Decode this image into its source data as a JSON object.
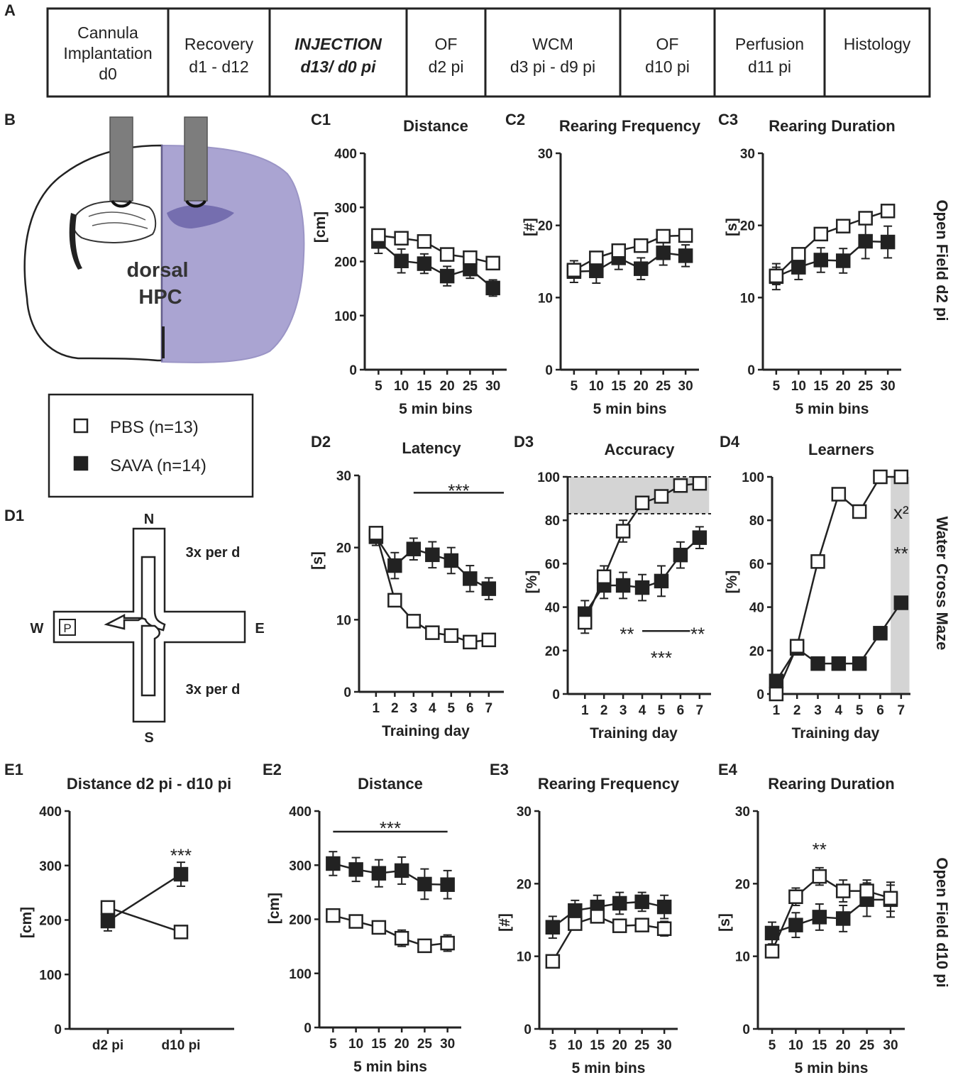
{
  "panel_labels": {
    "A": "A",
    "B": "B",
    "C1": "C1",
    "C2": "C2",
    "C3": "C3",
    "D1": "D1",
    "D2": "D2",
    "D3": "D3",
    "D4": "D4",
    "E1": "E1",
    "E2": "E2",
    "E3": "E3",
    "E4": "E4"
  },
  "timeline": [
    {
      "lines": [
        "Cannula",
        "Implantation",
        "d0"
      ],
      "italic_bold": false
    },
    {
      "lines": [
        "Recovery",
        "d1 - d12"
      ],
      "italic_bold": false
    },
    {
      "lines": [
        "INJECTION",
        "d13/ d0 pi"
      ],
      "italic_bold": true
    },
    {
      "lines": [
        "OF",
        "d2 pi"
      ],
      "italic_bold": false
    },
    {
      "lines": [
        "WCM",
        "d3 pi - d9 pi"
      ],
      "italic_bold": false
    },
    {
      "lines": [
        "OF",
        "d10 pi"
      ],
      "italic_bold": false
    },
    {
      "lines": [
        "Perfusion",
        "d11 pi"
      ],
      "italic_bold": false
    },
    {
      "lines": [
        "Histology"
      ],
      "italic_bold": false
    }
  ],
  "brain": {
    "label_line1": "dorsal",
    "label_line2": "HPC"
  },
  "legend": {
    "pbs": "PBS (n=13)",
    "sava": "SAVA (n=14)"
  },
  "maze": {
    "north": "N",
    "south": "S",
    "west": "W",
    "east": "E",
    "platform": "P",
    "trials_top": "3x per d",
    "trials_bottom": "3x per d"
  },
  "side_labels": {
    "of_d2": "Open Field d2 pi",
    "wcm": "Water Cross Maze",
    "of_d10": "Open Field d10 pi"
  },
  "colors": {
    "pbs_fill": "#ffffff",
    "sava_fill": "#222222",
    "line": "#222222",
    "shade": "#d4d4d4",
    "brain_stain": "#8e86c3"
  },
  "chart_data": [
    {
      "id": "C1",
      "type": "line",
      "title": "Distance",
      "xlabel": "5 min bins",
      "ylabel": "[cm]",
      "x": [
        5,
        10,
        15,
        20,
        25,
        30
      ],
      "ylim": [
        0,
        400
      ],
      "yticks": [
        0,
        100,
        200,
        300,
        400
      ],
      "series": [
        {
          "name": "PBS",
          "values": [
            248,
            243,
            237,
            213,
            207,
            197
          ],
          "err": [
            10,
            10,
            10,
            10,
            10,
            10
          ]
        },
        {
          "name": "SAVA",
          "values": [
            237,
            201,
            196,
            173,
            186,
            151
          ],
          "err": [
            22,
            22,
            18,
            18,
            17,
            15
          ]
        }
      ],
      "annotations": []
    },
    {
      "id": "C2",
      "type": "line",
      "title": "Rearing Frequency",
      "xlabel": "5 min bins",
      "ylabel": "[#]",
      "x": [
        5,
        10,
        15,
        20,
        25,
        30
      ],
      "ylim": [
        0,
        30
      ],
      "yticks": [
        0,
        10,
        20,
        30
      ],
      "series": [
        {
          "name": "PBS",
          "values": [
            13.8,
            15.5,
            16.5,
            17.2,
            18.5,
            18.6
          ],
          "err": [
            0.8,
            0.8,
            0.8,
            0.8,
            0.8,
            0.8
          ]
        },
        {
          "name": "SAVA",
          "values": [
            13.6,
            13.7,
            15.5,
            14.0,
            16.2,
            15.8
          ],
          "err": [
            1.5,
            1.7,
            1.6,
            1.5,
            1.7,
            1.5
          ]
        }
      ],
      "annotations": []
    },
    {
      "id": "C3",
      "type": "line",
      "title": "Rearing Duration",
      "xlabel": "5 min bins",
      "ylabel": "[s]",
      "x": [
        5,
        10,
        15,
        20,
        25,
        30
      ],
      "ylim": [
        0,
        30
      ],
      "yticks": [
        0,
        10,
        20,
        30
      ],
      "series": [
        {
          "name": "PBS",
          "values": [
            13.0,
            16.0,
            18.8,
            19.9,
            21.0,
            22.0
          ],
          "err": [
            1.2,
            0.8,
            0.8,
            0.7,
            0.8,
            0.8
          ]
        },
        {
          "name": "SAVA",
          "values": [
            12.9,
            14.2,
            15.2,
            15.1,
            17.8,
            17.7
          ],
          "err": [
            1.8,
            1.7,
            1.7,
            1.7,
            2.4,
            2.2
          ]
        }
      ],
      "annotations": []
    },
    {
      "id": "D2",
      "type": "line",
      "title": "Latency",
      "xlabel": "Training day",
      "ylabel": "[s]",
      "x": [
        1,
        2,
        3,
        4,
        5,
        6,
        7
      ],
      "ylim": [
        0,
        30
      ],
      "yticks": [
        0,
        10,
        20,
        30
      ],
      "series": [
        {
          "name": "PBS",
          "values": [
            22.0,
            12.7,
            9.8,
            8.2,
            7.8,
            6.9,
            7.2
          ],
          "err": [
            0.5,
            0.9,
            0.5,
            0.5,
            0.5,
            0.5,
            0.5
          ]
        },
        {
          "name": "SAVA",
          "values": [
            21.5,
            17.5,
            19.8,
            19.0,
            18.2,
            15.7,
            14.3
          ],
          "err": [
            1.2,
            1.8,
            1.5,
            1.8,
            1.8,
            1.8,
            1.5
          ]
        }
      ],
      "annotations": [
        {
          "text": "***",
          "type": "sigline",
          "x1": 3,
          "x2": 7.8,
          "y": 27.6,
          "ty": 28.4
        }
      ]
    },
    {
      "id": "D3",
      "type": "line",
      "title": "Accuracy",
      "xlabel": "Training day",
      "ylabel": "[%]",
      "x": [
        1,
        2,
        3,
        4,
        5,
        6,
        7
      ],
      "ylim": [
        0,
        100
      ],
      "yticks": [
        0,
        20,
        40,
        60,
        80,
        100
      ],
      "shade": {
        "y1": 83,
        "y2": 100,
        "from": 0.2,
        "to": 7.5
      },
      "series": [
        {
          "name": "PBS",
          "values": [
            33,
            54,
            75,
            88,
            91,
            96,
            97
          ],
          "err": [
            5,
            5,
            5,
            2,
            2,
            2,
            2
          ]
        },
        {
          "name": "SAVA",
          "values": [
            37,
            50,
            50,
            49,
            52,
            64,
            72
          ],
          "err": [
            6,
            6,
            6,
            6,
            7,
            6,
            5
          ]
        }
      ],
      "annotations": [
        {
          "text": "**",
          "type": "text",
          "x": 3.2,
          "y": 28
        },
        {
          "text": "",
          "type": "line",
          "x1": 4,
          "x2": 6.5,
          "y": 29
        },
        {
          "text": "**",
          "type": "text",
          "x": 6.9,
          "y": 28
        },
        {
          "text": "***",
          "type": "text",
          "x": 5,
          "y": 17
        }
      ]
    },
    {
      "id": "D4",
      "type": "line",
      "title": "Learners",
      "xlabel": "Training day",
      "ylabel": "[%]",
      "x": [
        1,
        2,
        3,
        4,
        5,
        6,
        7
      ],
      "ylim": [
        0,
        100
      ],
      "yticks": [
        0,
        20,
        40,
        60,
        80,
        100
      ],
      "shade": {
        "y1": 0,
        "y2": 100,
        "from": 6.5,
        "to": 7.4
      },
      "series": [
        {
          "name": "PBS",
          "values": [
            0,
            22,
            61,
            92,
            84,
            100,
            100
          ],
          "err": []
        },
        {
          "name": "SAVA",
          "values": [
            6,
            21,
            14,
            14,
            14,
            28,
            42
          ],
          "err": []
        }
      ],
      "annotations": [
        {
          "text": "x²",
          "type": "text",
          "x": 7,
          "y": 84
        },
        {
          "text": "**",
          "type": "text",
          "x": 7,
          "y": 65
        }
      ]
    },
    {
      "id": "E1",
      "type": "line",
      "title": "Distance d2 pi - d10 pi",
      "xlabel": "",
      "ylabel": "[cm]",
      "x": [
        "d2 pi",
        "d10 pi"
      ],
      "ylim": [
        0,
        400
      ],
      "yticks": [
        0,
        100,
        200,
        300,
        400
      ],
      "series": [
        {
          "name": "PBS",
          "values": [
            223,
            178
          ],
          "err": [
            10,
            10
          ]
        },
        {
          "name": "SAVA",
          "values": [
            198,
            284
          ],
          "err": [
            18,
            22
          ]
        }
      ],
      "annotations": [
        {
          "text": "***",
          "type": "text",
          "x": 2,
          "y": 320
        }
      ]
    },
    {
      "id": "E2",
      "type": "line",
      "title": "Distance",
      "xlabel": "5 min bins",
      "ylabel": "[cm]",
      "x": [
        5,
        10,
        15,
        20,
        25,
        30
      ],
      "ylim": [
        0,
        400
      ],
      "yticks": [
        0,
        100,
        200,
        300,
        400
      ],
      "series": [
        {
          "name": "PBS",
          "values": [
            207,
            196,
            185,
            165,
            151,
            156
          ],
          "err": [
            10,
            10,
            10,
            15,
            10,
            15
          ]
        },
        {
          "name": "SAVA",
          "values": [
            303,
            292,
            285,
            290,
            265,
            264
          ],
          "err": [
            22,
            22,
            25,
            25,
            28,
            26
          ]
        }
      ],
      "annotations": [
        {
          "text": "***",
          "type": "sigline",
          "x1": 5,
          "x2": 30,
          "y": 362,
          "ty": 375
        }
      ]
    },
    {
      "id": "E3",
      "type": "line",
      "title": "Rearing Frequency",
      "xlabel": "5 min bins",
      "ylabel": "[#]",
      "x": [
        5,
        10,
        15,
        20,
        25,
        30
      ],
      "ylim": [
        0,
        30
      ],
      "yticks": [
        0,
        10,
        20,
        30
      ],
      "series": [
        {
          "name": "PBS",
          "values": [
            9.3,
            14.5,
            15.5,
            14.2,
            14.3,
            13.8
          ],
          "err": [
            0.8,
            0.8,
            0.8,
            0.8,
            0.8,
            1.0
          ]
        },
        {
          "name": "SAVA",
          "values": [
            14.0,
            16.3,
            16.8,
            17.3,
            17.5,
            16.8
          ],
          "err": [
            1.5,
            1.4,
            1.6,
            1.5,
            1.3,
            1.6
          ]
        }
      ],
      "annotations": []
    },
    {
      "id": "E4",
      "type": "line",
      "title": "Rearing Duration",
      "xlabel": "5 min bins",
      "ylabel": "[s]",
      "x": [
        5,
        10,
        15,
        20,
        25,
        30
      ],
      "ylim": [
        0,
        30
      ],
      "yticks": [
        0,
        10,
        20,
        30
      ],
      "series": [
        {
          "name": "PBS",
          "values": [
            10.7,
            18.2,
            21.0,
            19.0,
            19.0,
            18.0
          ],
          "err": [
            0.8,
            1.2,
            1.2,
            1.5,
            1.5,
            1.8
          ]
        },
        {
          "name": "SAVA",
          "values": [
            13.2,
            14.3,
            15.4,
            15.2,
            17.8,
            17.8
          ],
          "err": [
            1.5,
            1.7,
            1.8,
            1.8,
            2.3,
            2.4
          ]
        }
      ],
      "annotations": [
        {
          "text": "**",
          "type": "text",
          "x": 15,
          "y": 24.8
        }
      ]
    }
  ]
}
